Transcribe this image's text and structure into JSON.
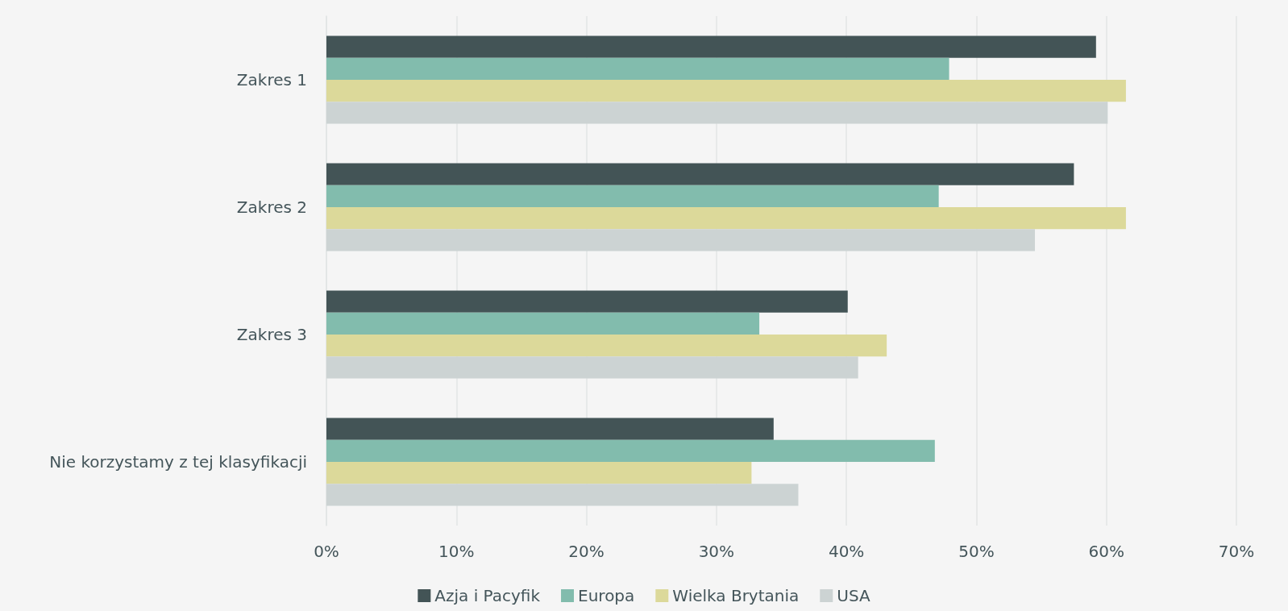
{
  "chart_data": {
    "type": "bar",
    "orientation": "horizontal",
    "categories": [
      "Zakres 1",
      "Zakres 2",
      "Zakres 3",
      "Nie korzystamy z tej klasyfikacji"
    ],
    "series": [
      {
        "name": "Azja i Pacyfik",
        "color": "#435456",
        "values": [
          59.2,
          57.5,
          40.1,
          34.4
        ]
      },
      {
        "name": "Europa",
        "color": "#82bcad",
        "values": [
          47.9,
          47.1,
          33.3,
          46.8
        ]
      },
      {
        "name": "Wielka Brytania",
        "color": "#dcd99a",
        "values": [
          61.5,
          61.5,
          43.1,
          32.7
        ]
      },
      {
        "name": "USA",
        "color": "#ccd3d3",
        "values": [
          60.1,
          54.5,
          40.9,
          36.3
        ]
      }
    ],
    "xlim": [
      0,
      70
    ],
    "xticks": [
      {
        "value": 0,
        "label": "0%"
      },
      {
        "value": 10,
        "label": "10%"
      },
      {
        "value": 20,
        "label": "20%"
      },
      {
        "value": 30,
        "label": "30%"
      },
      {
        "value": 40,
        "label": "40%"
      },
      {
        "value": 50,
        "label": "50%"
      },
      {
        "value": 60,
        "label": "60%"
      },
      {
        "value": 70,
        "label": "70%"
      }
    ],
    "grid": "x",
    "legend": "bottom"
  }
}
